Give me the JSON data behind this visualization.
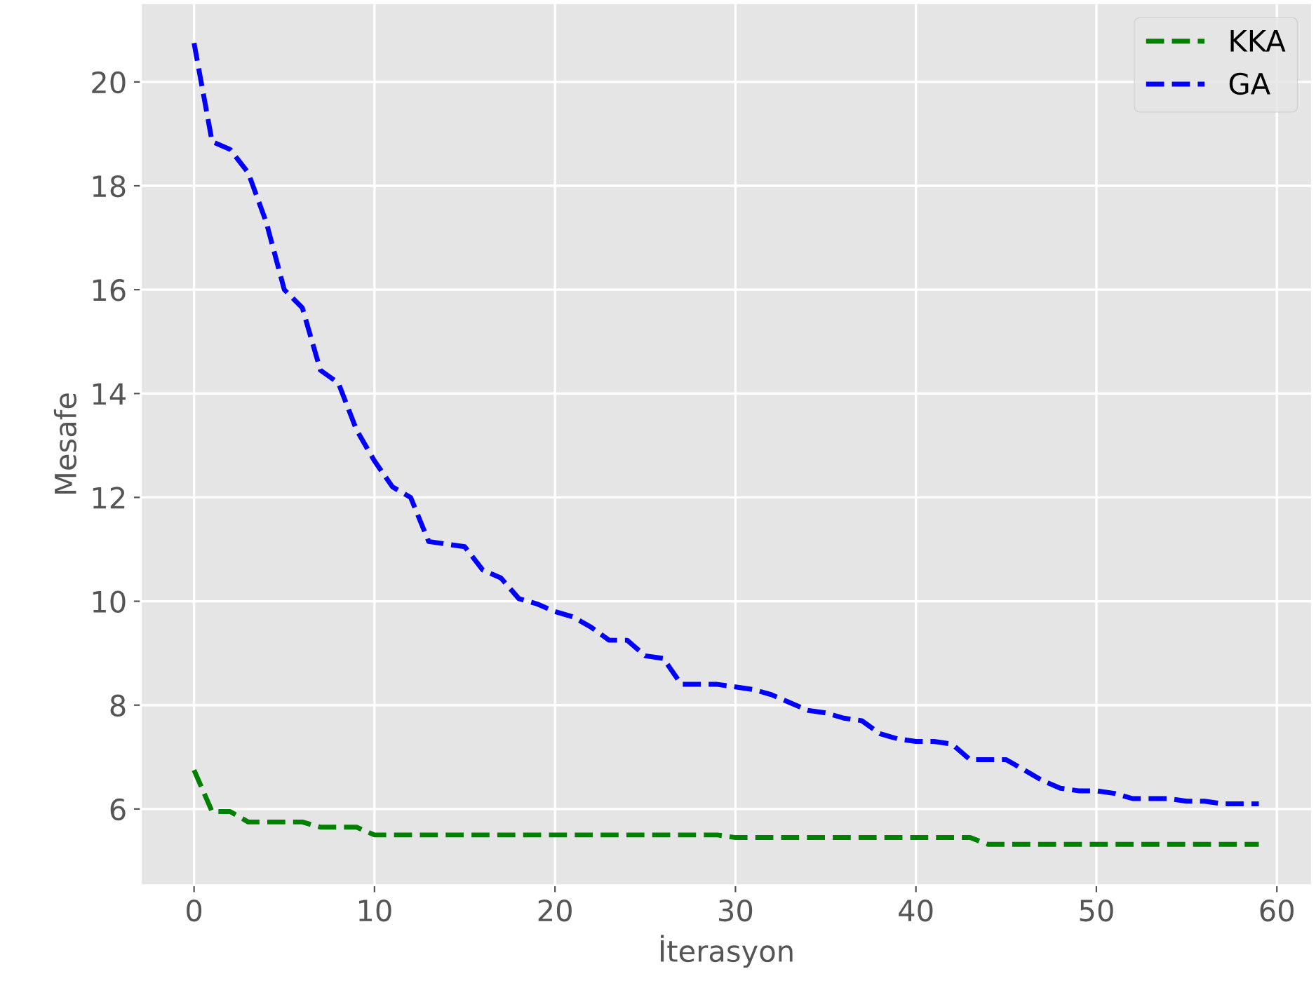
{
  "chart_data": {
    "type": "line",
    "xlabel": "İterasyon",
    "ylabel": "Mesafe",
    "x": [
      0,
      1,
      2,
      3,
      4,
      5,
      6,
      7,
      8,
      9,
      10,
      11,
      12,
      13,
      14,
      15,
      16,
      17,
      18,
      19,
      20,
      21,
      22,
      23,
      24,
      25,
      26,
      27,
      28,
      29,
      30,
      31,
      32,
      33,
      34,
      35,
      36,
      37,
      38,
      39,
      40,
      41,
      42,
      43,
      44,
      45,
      46,
      47,
      48,
      49,
      50,
      51,
      52,
      53,
      54,
      55,
      56,
      57,
      58,
      59
    ],
    "series": [
      {
        "name": "KKA",
        "color": "#008000",
        "values": [
          6.75,
          5.95,
          5.95,
          5.75,
          5.75,
          5.75,
          5.75,
          5.65,
          5.65,
          5.65,
          5.5,
          5.5,
          5.5,
          5.5,
          5.5,
          5.5,
          5.5,
          5.5,
          5.5,
          5.5,
          5.5,
          5.5,
          5.5,
          5.5,
          5.5,
          5.5,
          5.5,
          5.5,
          5.5,
          5.5,
          5.45,
          5.45,
          5.45,
          5.45,
          5.45,
          5.45,
          5.45,
          5.45,
          5.45,
          5.45,
          5.45,
          5.45,
          5.45,
          5.45,
          5.32,
          5.32,
          5.32,
          5.32,
          5.32,
          5.32,
          5.32,
          5.32,
          5.32,
          5.32,
          5.32,
          5.32,
          5.32,
          5.32,
          5.32,
          5.32
        ]
      },
      {
        "name": "GA",
        "color": "#0000ff",
        "values": [
          20.75,
          18.85,
          18.7,
          18.25,
          17.3,
          16.0,
          15.65,
          14.45,
          14.2,
          13.3,
          12.7,
          12.2,
          12.0,
          11.15,
          11.1,
          11.05,
          10.6,
          10.45,
          10.05,
          9.95,
          9.8,
          9.7,
          9.5,
          9.25,
          9.25,
          8.95,
          8.9,
          8.4,
          8.4,
          8.4,
          8.35,
          8.3,
          8.2,
          8.05,
          7.9,
          7.85,
          7.75,
          7.7,
          7.45,
          7.35,
          7.3,
          7.3,
          7.25,
          6.95,
          6.95,
          6.95,
          6.75,
          6.55,
          6.4,
          6.35,
          6.35,
          6.3,
          6.2,
          6.2,
          6.2,
          6.15,
          6.15,
          6.1,
          6.1,
          6.1
        ]
      }
    ],
    "xlim": [
      -2.95,
      61.95
    ],
    "ylim": [
      4.53,
      21.52
    ],
    "xticks": [
      0,
      10,
      20,
      30,
      40,
      50,
      60
    ],
    "yticks": [
      6,
      8,
      10,
      12,
      14,
      16,
      18,
      20
    ],
    "grid": true,
    "legend": "top right",
    "line_style": "dashed",
    "marker": "none"
  }
}
